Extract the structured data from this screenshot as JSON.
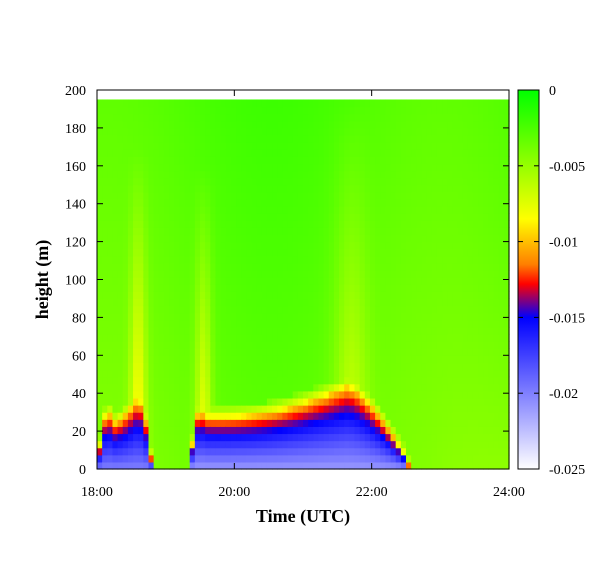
{
  "chart_data": {
    "type": "heatmap",
    "title": "",
    "xlabel": "Time (UTC)",
    "ylabel": "height (m)",
    "xlim": [
      18,
      24
    ],
    "ylim": [
      0,
      200
    ],
    "data_top_height": 195,
    "x_ticks": [
      {
        "value": 18,
        "label": "18:00"
      },
      {
        "value": 20,
        "label": "20:00"
      },
      {
        "value": 22,
        "label": "22:00"
      },
      {
        "value": 24,
        "label": "24:00"
      }
    ],
    "y_ticks": [
      {
        "value": 0,
        "label": "0"
      },
      {
        "value": 20,
        "label": "20"
      },
      {
        "value": 40,
        "label": "40"
      },
      {
        "value": 60,
        "label": "60"
      },
      {
        "value": 80,
        "label": "80"
      },
      {
        "value": 100,
        "label": "100"
      },
      {
        "value": 120,
        "label": "120"
      },
      {
        "value": 140,
        "label": "140"
      },
      {
        "value": 160,
        "label": "160"
      },
      {
        "value": 180,
        "label": "180"
      },
      {
        "value": 200,
        "label": "200"
      }
    ],
    "colorbar": {
      "min": -0.025,
      "max": 0,
      "ticks": [
        {
          "value": 0,
          "label": "0"
        },
        {
          "value": -0.005,
          "label": "-0.005"
        },
        {
          "value": -0.01,
          "label": "-0.01"
        },
        {
          "value": -0.015,
          "label": "-0.015"
        },
        {
          "value": -0.02,
          "label": "-0.02"
        },
        {
          "value": -0.025,
          "label": "-0.025"
        }
      ],
      "stops": [
        {
          "value": 0,
          "color": "#00ff00"
        },
        {
          "value": -0.0085,
          "color": "#ffff00"
        },
        {
          "value": -0.0115,
          "color": "#ff7f00"
        },
        {
          "value": -0.0128,
          "color": "#ff0000"
        },
        {
          "value": -0.015,
          "color": "#0000ff"
        },
        {
          "value": -0.025,
          "color": "#ffffff"
        }
      ]
    },
    "layers": [
      {
        "x0": 18.0,
        "x1": 18.85,
        "peak": 18.6,
        "depth": 38,
        "base": 25,
        "core": -0.02
      },
      {
        "x0": 19.35,
        "x1": 22.6,
        "peak": 21.65,
        "depth": 44,
        "base": 28,
        "core": -0.021
      }
    ],
    "plumes": [
      {
        "x": 18.6,
        "top": 170,
        "width": 0.12,
        "strength": -0.0055
      },
      {
        "x": 19.55,
        "top": 160,
        "width": 0.12,
        "strength": -0.005
      },
      {
        "x": 21.7,
        "top": 195,
        "width": 0.25,
        "strength": -0.0035
      }
    ],
    "notes": "Heatmap of a negative quantity vs time (18:00–24:00 UTC) and height (0–195 m); strong negative values in a shallow near-surface layer between about 18:00–18:50 and 19:20–22:35."
  }
}
